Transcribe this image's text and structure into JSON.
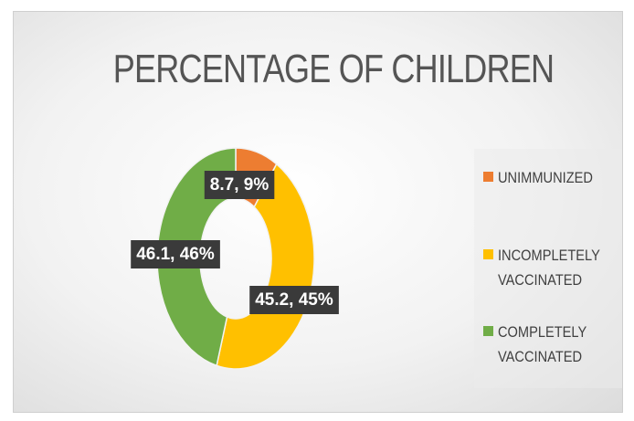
{
  "chart_data": {
    "type": "pie",
    "variant": "doughnut",
    "title": "PERCENTAGE OF CHILDREN",
    "categories": [
      "UNIMMUNIZED",
      "INCOMPLETELY VACCINATED",
      "COMPLETELY VACCINATED"
    ],
    "values": [
      8.7,
      45.2,
      46.1
    ],
    "percentages": [
      9,
      45,
      46
    ],
    "data_labels": [
      "8.7, 9%",
      "45.2, 45%",
      "46.1, 46%"
    ],
    "colors": [
      "#ED7D31",
      "#FFC000",
      "#70AD47"
    ],
    "legend_position": "right"
  }
}
